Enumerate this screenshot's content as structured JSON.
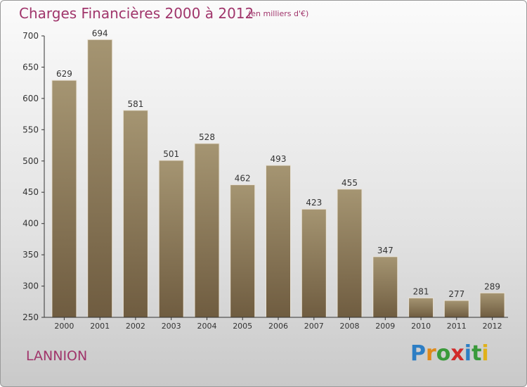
{
  "header": {
    "title": "Charges Financières 2000 à 2012",
    "subtitle": "(en milliers d'€)"
  },
  "footer": {
    "city": "LANNION",
    "brand_letters": [
      "P",
      "r",
      "o",
      "x",
      "i",
      "t",
      "i"
    ],
    "brand_colors": [
      "#2d7ec4",
      "#e08a1a",
      "#3a9a3a",
      "#d12a2a",
      "#2d7ec4",
      "#3a9a3a",
      "#e0b11a"
    ]
  },
  "colors": {
    "title": "#a0356b",
    "bar_top": "#a59572",
    "bar_bottom": "#6f5c40",
    "axis": "#333333"
  },
  "chart_data": {
    "type": "bar",
    "categories": [
      "2000",
      "2001",
      "2002",
      "2003",
      "2004",
      "2005",
      "2006",
      "2007",
      "2008",
      "2009",
      "2010",
      "2011",
      "2012"
    ],
    "values": [
      629,
      694,
      581,
      501,
      528,
      462,
      493,
      423,
      455,
      347,
      281,
      277,
      289
    ],
    "ylim": [
      250,
      700
    ],
    "yticks": [
      250,
      300,
      350,
      400,
      450,
      500,
      550,
      600,
      650,
      700
    ],
    "grid": false,
    "title": "Charges Financières 2000 à 2012",
    "subtitle": "(en milliers d'€)"
  }
}
